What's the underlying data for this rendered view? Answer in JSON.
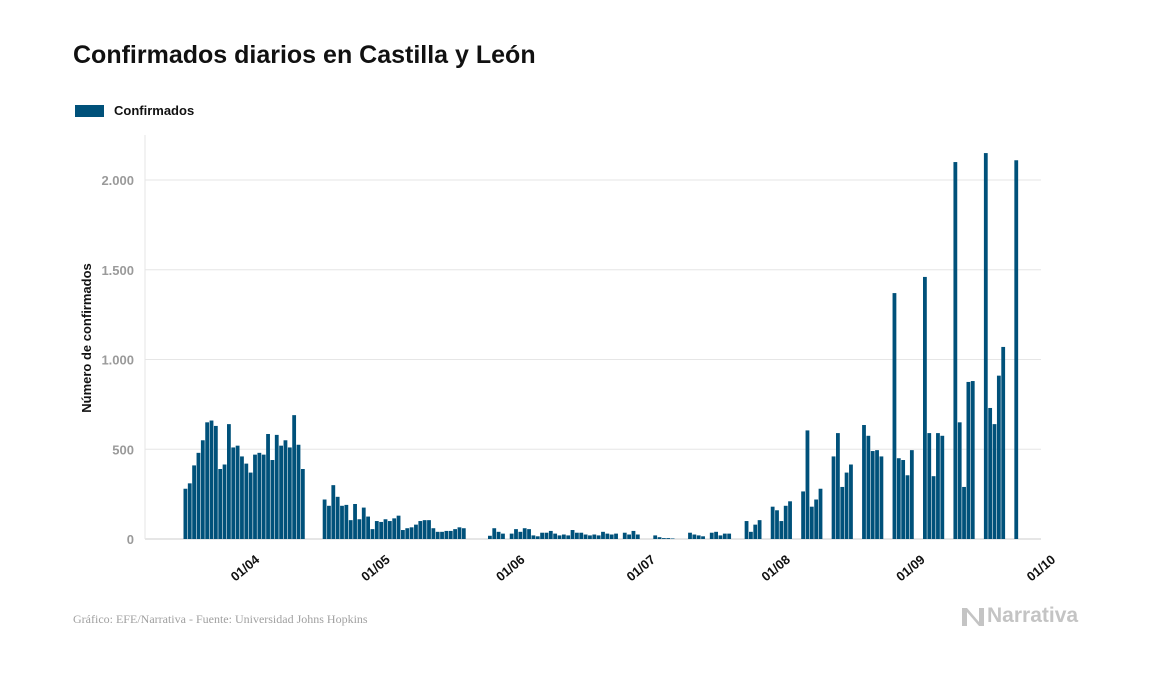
{
  "title": "Confirmados diarios en Castilla y León",
  "legend": {
    "label": "Confirmados",
    "color": "#00517a"
  },
  "footer": {
    "source": "Gráfico: EFE/Narrativa - Fuente: Universidad Johns Hopkins",
    "brand": "Narrativa"
  },
  "colors": {
    "bar": "#00517a",
    "grid": "#e6e6e6",
    "tick": "#9a9a9a",
    "axis": "#cccccc"
  },
  "chart_data": {
    "type": "bar",
    "ylabel": "Número de confirmados",
    "xlabel": "",
    "ylim": [
      0,
      2200
    ],
    "yticks": [
      0,
      500,
      1000,
      1500,
      2000
    ],
    "ytick_labels": [
      "0",
      "500",
      "1.000",
      "1.500",
      "2.000"
    ],
    "xticks": [
      {
        "day": 14,
        "label": "01/04"
      },
      {
        "day": 44,
        "label": "01/05"
      },
      {
        "day": 75,
        "label": "01/06"
      },
      {
        "day": 105,
        "label": "01/07"
      },
      {
        "day": 136,
        "label": "01/08"
      },
      {
        "day": 167,
        "label": "01/09"
      },
      {
        "day": 197,
        "label": "01/10"
      }
    ],
    "x_start": "2020-03-18",
    "series": [
      {
        "name": "Confirmados",
        "values": [
          280,
          310,
          410,
          480,
          550,
          650,
          660,
          630,
          390,
          415,
          640,
          510,
          520,
          460,
          420,
          370,
          470,
          480,
          470,
          585,
          440,
          580,
          520,
          550,
          510,
          690,
          525,
          390,
          0,
          0,
          0,
          0,
          220,
          185,
          300,
          235,
          185,
          190,
          105,
          195,
          110,
          175,
          125,
          55,
          100,
          95,
          110,
          100,
          115,
          130,
          50,
          60,
          65,
          80,
          100,
          105,
          105,
          60,
          40,
          40,
          45,
          45,
          55,
          65,
          60,
          0,
          0,
          0,
          0,
          0,
          18,
          60,
          40,
          30,
          0,
          30,
          55,
          40,
          60,
          55,
          20,
          15,
          35,
          35,
          45,
          30,
          20,
          25,
          20,
          50,
          35,
          35,
          25,
          20,
          25,
          20,
          40,
          30,
          25,
          30,
          0,
          35,
          25,
          45,
          25,
          0,
          0,
          0,
          20,
          10,
          5,
          5,
          3,
          0,
          0,
          0,
          35,
          25,
          20,
          15,
          0,
          35,
          40,
          20,
          30,
          30,
          0,
          0,
          0,
          100,
          40,
          80,
          105,
          0,
          0,
          180,
          160,
          100,
          185,
          210,
          0,
          0,
          265,
          605,
          180,
          220,
          280,
          0,
          0,
          460,
          590,
          290,
          370,
          415,
          0,
          0,
          635,
          575,
          490,
          495,
          460,
          0,
          0,
          1370,
          450,
          440,
          355,
          495,
          0,
          0,
          1460,
          590,
          350,
          590,
          575,
          0,
          0,
          2100,
          650,
          290,
          875,
          880,
          0,
          0,
          2150,
          730,
          640,
          910,
          1070,
          0,
          0,
          2110
        ]
      }
    ]
  }
}
